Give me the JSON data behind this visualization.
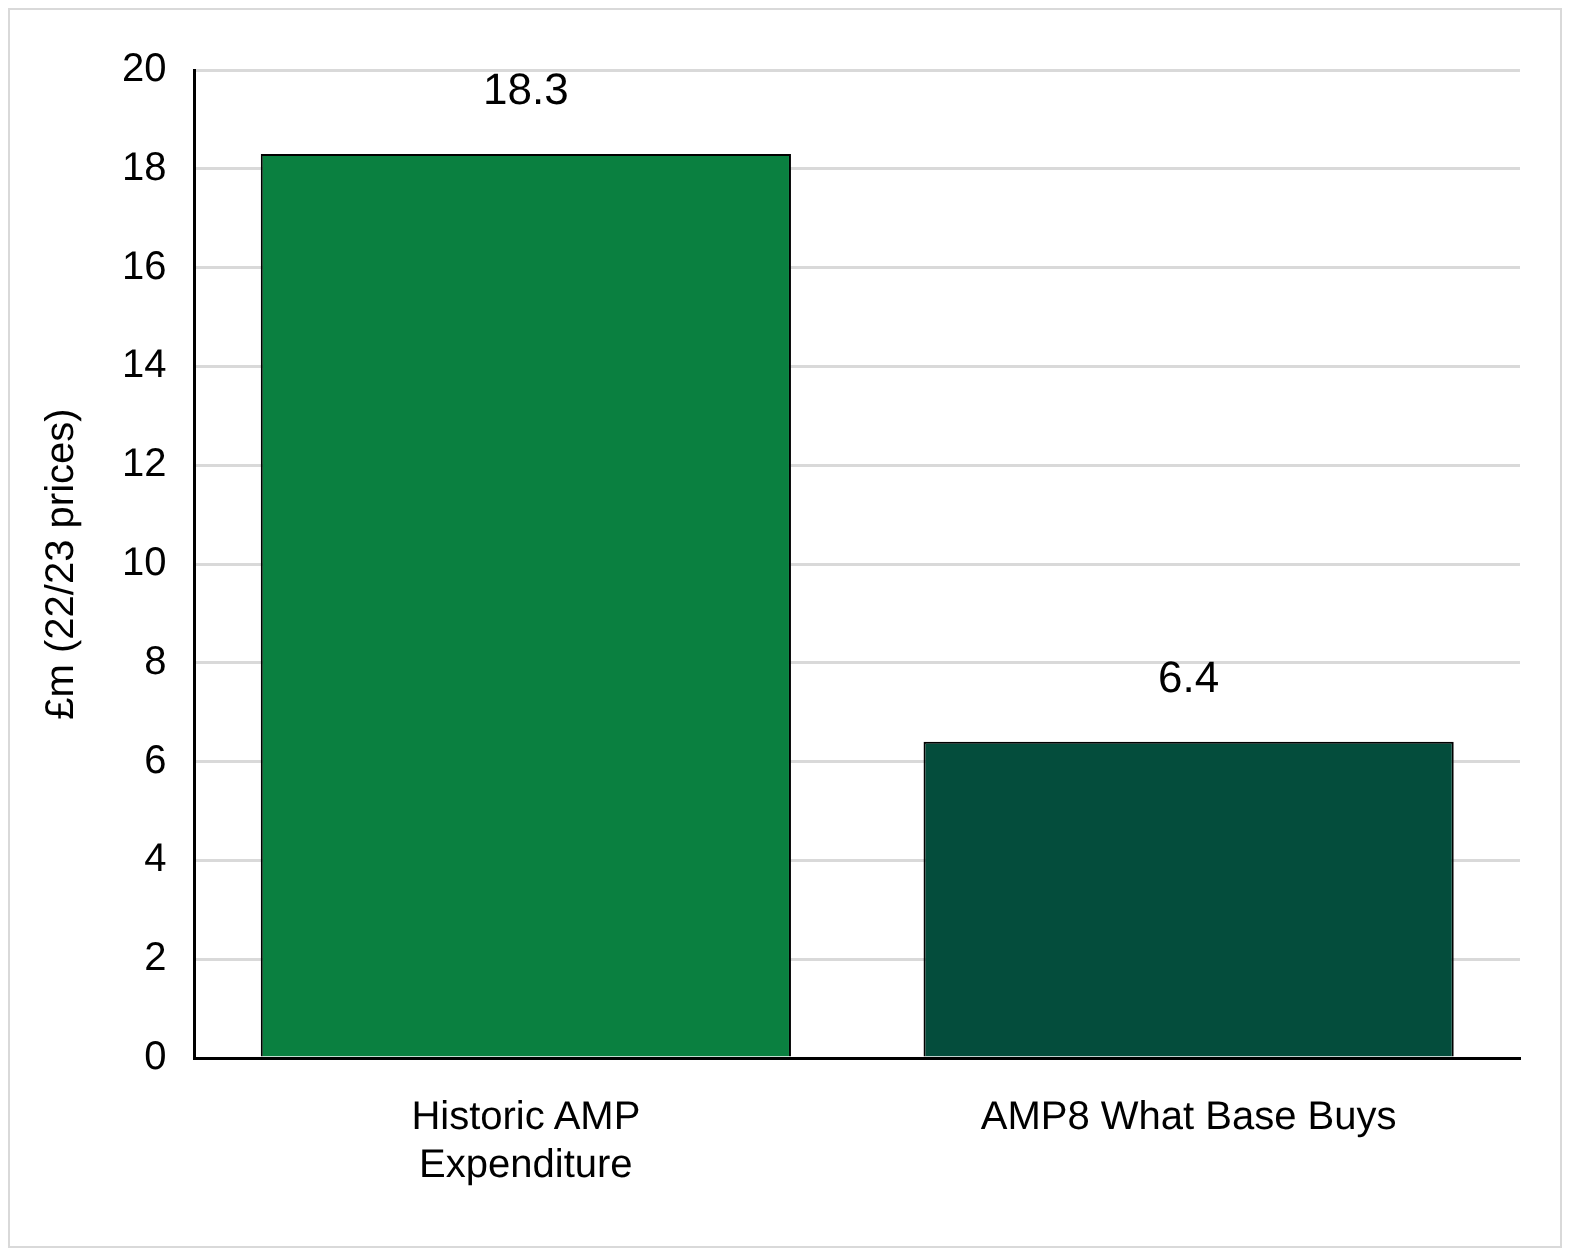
{
  "chart_data": {
    "type": "bar",
    "ylabel": "£m (22/23 prices)",
    "categories": [
      "Historic AMP Expenditure",
      "AMP8 What Base Buys"
    ],
    "values": [
      18.3,
      6.4
    ],
    "colors": [
      "#0a8040",
      "#044d3c"
    ],
    "ylim": [
      0,
      20
    ],
    "yticks": [
      0,
      2,
      4,
      6,
      8,
      10,
      12,
      14,
      16,
      18,
      20
    ],
    "grid": "y",
    "data_labels": true
  }
}
